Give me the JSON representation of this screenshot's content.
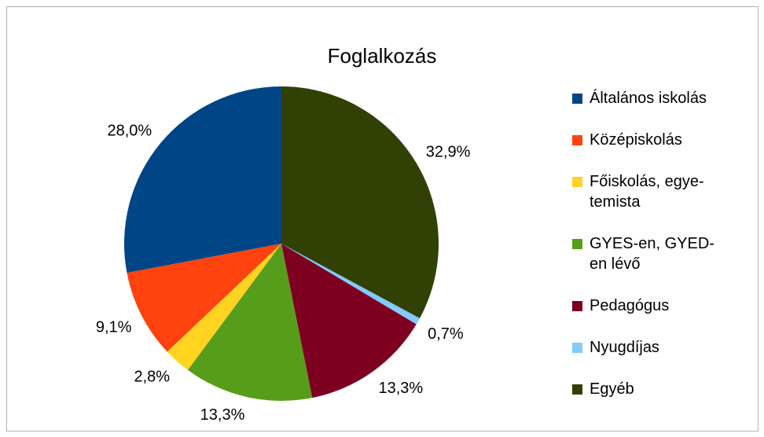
{
  "chart_data": {
    "type": "pie",
    "title": "Foglalkozás",
    "categories": [
      "Általános iskolás",
      "Középiskolás",
      "Főiskolás, egye­temista",
      "GYES-en, GYED-en lévő",
      "Pedagógus",
      "Nyugdíjas",
      "Egyéb"
    ],
    "values": [
      28.0,
      9.1,
      2.8,
      13.3,
      13.3,
      0.7,
      32.9
    ],
    "value_labels": [
      "28,0%",
      "9,1%",
      "2,8%",
      "13,3%",
      "13,3%",
      "0,7%",
      "32,9%"
    ],
    "colors": [
      "#004586",
      "#ff420e",
      "#ffd320",
      "#579d1c",
      "#7e0021",
      "#83caff",
      "#314004"
    ],
    "direction": "counterclockwise",
    "legend": "right"
  }
}
